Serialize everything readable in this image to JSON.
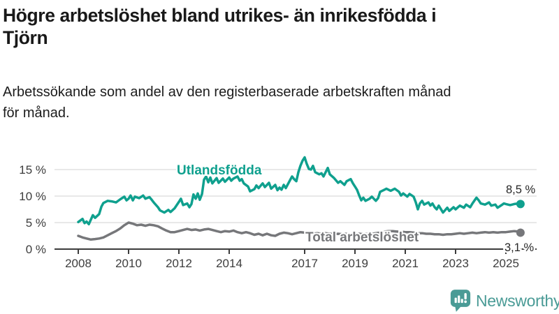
{
  "header": {
    "title": "Högre arbetslöshet bland utrikes- än inrikesfödda i\nTjörn",
    "subtitle": "Arbetssökande som andel av den registerbaserade arbetskraften månad\nför månad."
  },
  "branding": {
    "logo_text": "Newsworthy",
    "logo_icon": "bar-chart-speech-bubble-icon",
    "logo_color": "#4a9b96"
  },
  "chart_data": {
    "type": "line",
    "title": "Högre arbetslöshet bland utrikes- än inrikesfödda i Tjörn",
    "subtitle": "Arbetssökande som andel av den registerbaserade arbetskraften månad för månad.",
    "unit": "%",
    "grid": true,
    "legend_position": "inline-labels",
    "x_axis": {
      "ticks": [
        2008,
        2010,
        2012,
        2014,
        2017,
        2019,
        2021,
        2023,
        2025
      ],
      "tick_labels": [
        "2008",
        "2010",
        "2012",
        "2014",
        "2017",
        "2019",
        "2021",
        "2023",
        "2025"
      ],
      "range": [
        2008,
        2025.58
      ]
    },
    "y_axis": {
      "ticks": [
        0,
        5,
        10,
        15
      ],
      "tick_labels": [
        "0 %",
        "5 %",
        "10 %",
        "15 %"
      ],
      "range": [
        0,
        18.7
      ]
    },
    "colors": {
      "utlandsfodda": "#0fa08e",
      "total": "#76777a",
      "axis": "#3d3d3d",
      "gridline": "#dadada",
      "value_label": "#262626"
    },
    "series": [
      {
        "name": "Utlandsfödda",
        "color": "#0fa08e",
        "end_label": "8,5 %",
        "end_value": 8.5,
        "points": [
          [
            2008.0,
            5.1
          ],
          [
            2008.17,
            5.7
          ],
          [
            2008.25,
            4.9
          ],
          [
            2008.33,
            5.2
          ],
          [
            2008.42,
            4.7
          ],
          [
            2008.58,
            6.4
          ],
          [
            2008.67,
            5.9
          ],
          [
            2008.83,
            6.6
          ],
          [
            2008.92,
            8.0
          ],
          [
            2009.0,
            8.7
          ],
          [
            2009.17,
            9.1
          ],
          [
            2009.33,
            9.0
          ],
          [
            2009.5,
            8.8
          ],
          [
            2009.67,
            9.4
          ],
          [
            2009.83,
            9.9
          ],
          [
            2009.92,
            9.2
          ],
          [
            2010.0,
            9.5
          ],
          [
            2010.08,
            10.1
          ],
          [
            2010.17,
            9.2
          ],
          [
            2010.25,
            9.9
          ],
          [
            2010.42,
            9.6
          ],
          [
            2010.58,
            10.1
          ],
          [
            2010.67,
            9.5
          ],
          [
            2010.83,
            9.8
          ],
          [
            2010.92,
            9.3
          ],
          [
            2011.0,
            8.8
          ],
          [
            2011.17,
            7.9
          ],
          [
            2011.25,
            7.3
          ],
          [
            2011.42,
            6.9
          ],
          [
            2011.58,
            7.4
          ],
          [
            2011.67,
            7.0
          ],
          [
            2011.83,
            7.7
          ],
          [
            2012.0,
            8.9
          ],
          [
            2012.08,
            9.5
          ],
          [
            2012.17,
            8.3
          ],
          [
            2012.33,
            8.6
          ],
          [
            2012.42,
            7.9
          ],
          [
            2012.5,
            8.5
          ],
          [
            2012.58,
            10.3
          ],
          [
            2012.67,
            9.5
          ],
          [
            2012.75,
            10.5
          ],
          [
            2012.83,
            9.3
          ],
          [
            2012.92,
            10.4
          ],
          [
            2013.0,
            13.1
          ],
          [
            2013.08,
            13.7
          ],
          [
            2013.17,
            12.6
          ],
          [
            2013.25,
            13.5
          ],
          [
            2013.33,
            12.4
          ],
          [
            2013.5,
            13.4
          ],
          [
            2013.58,
            12.5
          ],
          [
            2013.75,
            13.3
          ],
          [
            2013.83,
            12.7
          ],
          [
            2014.0,
            13.5
          ],
          [
            2014.08,
            12.9
          ],
          [
            2014.17,
            13.3
          ],
          [
            2014.33,
            13.7
          ],
          [
            2014.42,
            12.9
          ],
          [
            2014.5,
            13.2
          ],
          [
            2014.58,
            12.4
          ],
          [
            2014.75,
            11.8
          ],
          [
            2014.83,
            10.9
          ],
          [
            2015.0,
            11.3
          ],
          [
            2015.08,
            12.0
          ],
          [
            2015.17,
            11.5
          ],
          [
            2015.33,
            12.4
          ],
          [
            2015.42,
            11.7
          ],
          [
            2015.58,
            12.5
          ],
          [
            2015.67,
            11.4
          ],
          [
            2015.83,
            12.1
          ],
          [
            2015.92,
            11.1
          ],
          [
            2016.0,
            11.6
          ],
          [
            2016.08,
            11.2
          ],
          [
            2016.17,
            12.1
          ],
          [
            2016.25,
            11.5
          ],
          [
            2016.42,
            13.0
          ],
          [
            2016.5,
            13.7
          ],
          [
            2016.58,
            13.2
          ],
          [
            2016.67,
            12.8
          ],
          [
            2016.75,
            14.5
          ],
          [
            2016.83,
            15.7
          ],
          [
            2016.92,
            16.7
          ],
          [
            2017.0,
            17.3
          ],
          [
            2017.08,
            16.1
          ],
          [
            2017.17,
            15.1
          ],
          [
            2017.25,
            15.0
          ],
          [
            2017.33,
            15.7
          ],
          [
            2017.42,
            14.5
          ],
          [
            2017.58,
            14.1
          ],
          [
            2017.67,
            14.3
          ],
          [
            2017.75,
            13.7
          ],
          [
            2017.92,
            15.3
          ],
          [
            2018.0,
            14.1
          ],
          [
            2018.17,
            13.4
          ],
          [
            2018.33,
            12.5
          ],
          [
            2018.42,
            12.8
          ],
          [
            2018.58,
            12.1
          ],
          [
            2018.67,
            12.8
          ],
          [
            2018.83,
            13.2
          ],
          [
            2018.92,
            12.4
          ],
          [
            2019.0,
            11.8
          ],
          [
            2019.08,
            11.2
          ],
          [
            2019.17,
            10.1
          ],
          [
            2019.25,
            9.2
          ],
          [
            2019.33,
            9.7
          ],
          [
            2019.42,
            9.1
          ],
          [
            2019.58,
            9.5
          ],
          [
            2019.67,
            9.9
          ],
          [
            2019.83,
            9.1
          ],
          [
            2019.92,
            9.6
          ],
          [
            2020.0,
            10.8
          ],
          [
            2020.17,
            11.2
          ],
          [
            2020.25,
            11.4
          ],
          [
            2020.42,
            11.0
          ],
          [
            2020.58,
            11.4
          ],
          [
            2020.75,
            10.8
          ],
          [
            2020.83,
            10.1
          ],
          [
            2020.92,
            10.5
          ],
          [
            2021.08,
            9.9
          ],
          [
            2021.17,
            10.4
          ],
          [
            2021.33,
            9.9
          ],
          [
            2021.42,
            8.8
          ],
          [
            2021.5,
            7.5
          ],
          [
            2021.58,
            8.6
          ],
          [
            2021.67,
            9.1
          ],
          [
            2021.75,
            8.4
          ],
          [
            2021.92,
            8.8
          ],
          [
            2022.0,
            8.2
          ],
          [
            2022.08,
            8.6
          ],
          [
            2022.17,
            7.9
          ],
          [
            2022.25,
            7.5
          ],
          [
            2022.33,
            8.2
          ],
          [
            2022.5,
            6.9
          ],
          [
            2022.67,
            7.8
          ],
          [
            2022.75,
            7.2
          ],
          [
            2022.92,
            7.9
          ],
          [
            2023.0,
            7.5
          ],
          [
            2023.17,
            8.2
          ],
          [
            2023.33,
            7.8
          ],
          [
            2023.42,
            8.4
          ],
          [
            2023.58,
            7.9
          ],
          [
            2023.67,
            8.6
          ],
          [
            2023.83,
            9.7
          ],
          [
            2023.92,
            9.2
          ],
          [
            2024.0,
            8.6
          ],
          [
            2024.17,
            8.4
          ],
          [
            2024.33,
            8.8
          ],
          [
            2024.42,
            8.2
          ],
          [
            2024.58,
            8.4
          ],
          [
            2024.67,
            7.8
          ],
          [
            2024.83,
            8.3
          ],
          [
            2024.92,
            8.6
          ],
          [
            2025.0,
            8.5
          ],
          [
            2025.17,
            8.3
          ],
          [
            2025.33,
            8.5
          ],
          [
            2025.5,
            8.6
          ],
          [
            2025.58,
            8.5
          ]
        ]
      },
      {
        "name": "Total arbetslöshet",
        "color": "#76777a",
        "end_label": "3,1 %",
        "end_value": 3.1,
        "points": [
          [
            2008.0,
            2.5
          ],
          [
            2008.17,
            2.2
          ],
          [
            2008.33,
            2.0
          ],
          [
            2008.5,
            1.8
          ],
          [
            2008.67,
            1.9
          ],
          [
            2008.83,
            2.0
          ],
          [
            2009.0,
            2.2
          ],
          [
            2009.17,
            2.6
          ],
          [
            2009.33,
            3.0
          ],
          [
            2009.5,
            3.4
          ],
          [
            2009.67,
            3.9
          ],
          [
            2009.83,
            4.5
          ],
          [
            2010.0,
            5.0
          ],
          [
            2010.17,
            4.8
          ],
          [
            2010.33,
            4.5
          ],
          [
            2010.5,
            4.6
          ],
          [
            2010.67,
            4.4
          ],
          [
            2010.83,
            4.6
          ],
          [
            2011.0,
            4.5
          ],
          [
            2011.17,
            4.3
          ],
          [
            2011.33,
            3.9
          ],
          [
            2011.5,
            3.5
          ],
          [
            2011.67,
            3.2
          ],
          [
            2011.83,
            3.2
          ],
          [
            2012.0,
            3.4
          ],
          [
            2012.17,
            3.6
          ],
          [
            2012.33,
            3.8
          ],
          [
            2012.5,
            3.6
          ],
          [
            2012.67,
            3.7
          ],
          [
            2012.83,
            3.5
          ],
          [
            2013.0,
            3.7
          ],
          [
            2013.17,
            3.8
          ],
          [
            2013.33,
            3.6
          ],
          [
            2013.5,
            3.4
          ],
          [
            2013.67,
            3.2
          ],
          [
            2013.83,
            3.4
          ],
          [
            2014.0,
            3.3
          ],
          [
            2014.17,
            3.5
          ],
          [
            2014.33,
            3.2
          ],
          [
            2014.5,
            3.0
          ],
          [
            2014.67,
            3.2
          ],
          [
            2014.83,
            3.0
          ],
          [
            2015.0,
            2.7
          ],
          [
            2015.17,
            2.9
          ],
          [
            2015.33,
            2.6
          ],
          [
            2015.5,
            2.9
          ],
          [
            2015.67,
            2.6
          ],
          [
            2015.83,
            2.5
          ],
          [
            2016.0,
            2.9
          ],
          [
            2016.17,
            3.1
          ],
          [
            2016.33,
            3.0
          ],
          [
            2016.5,
            2.8
          ],
          [
            2016.67,
            3.0
          ],
          [
            2016.83,
            3.2
          ],
          [
            2017.0,
            3.1
          ],
          [
            2017.17,
            3.0
          ],
          [
            2017.33,
            2.9
          ],
          [
            2017.5,
            3.0
          ],
          [
            2017.67,
            2.9
          ],
          [
            2017.83,
            3.0
          ],
          [
            2018.0,
            2.9
          ],
          [
            2018.17,
            2.8
          ],
          [
            2018.33,
            2.9
          ],
          [
            2018.5,
            2.8
          ],
          [
            2018.67,
            2.9
          ],
          [
            2018.83,
            2.8
          ],
          [
            2019.0,
            2.8
          ],
          [
            2019.17,
            2.9
          ],
          [
            2019.33,
            2.8
          ],
          [
            2019.5,
            2.9
          ],
          [
            2019.67,
            2.9
          ],
          [
            2019.83,
            3.0
          ],
          [
            2020.0,
            3.1
          ],
          [
            2020.17,
            3.3
          ],
          [
            2020.33,
            3.4
          ],
          [
            2020.5,
            3.4
          ],
          [
            2020.67,
            3.3
          ],
          [
            2020.83,
            3.3
          ],
          [
            2021.0,
            3.2
          ],
          [
            2021.17,
            3.2
          ],
          [
            2021.33,
            3.1
          ],
          [
            2021.5,
            3.0
          ],
          [
            2021.67,
            3.0
          ],
          [
            2021.83,
            2.9
          ],
          [
            2022.0,
            2.9
          ],
          [
            2022.17,
            2.8
          ],
          [
            2022.33,
            2.8
          ],
          [
            2022.5,
            2.7
          ],
          [
            2022.67,
            2.8
          ],
          [
            2022.83,
            2.8
          ],
          [
            2023.0,
            2.9
          ],
          [
            2023.17,
            3.0
          ],
          [
            2023.33,
            2.9
          ],
          [
            2023.5,
            3.0
          ],
          [
            2023.67,
            3.1
          ],
          [
            2023.83,
            3.0
          ],
          [
            2024.0,
            3.1
          ],
          [
            2024.17,
            3.2
          ],
          [
            2024.33,
            3.1
          ],
          [
            2024.5,
            3.2
          ],
          [
            2024.67,
            3.1
          ],
          [
            2024.83,
            3.2
          ],
          [
            2025.0,
            3.2
          ],
          [
            2025.17,
            3.3
          ],
          [
            2025.33,
            3.4
          ],
          [
            2025.5,
            3.3
          ],
          [
            2025.58,
            3.1
          ]
        ]
      }
    ]
  }
}
